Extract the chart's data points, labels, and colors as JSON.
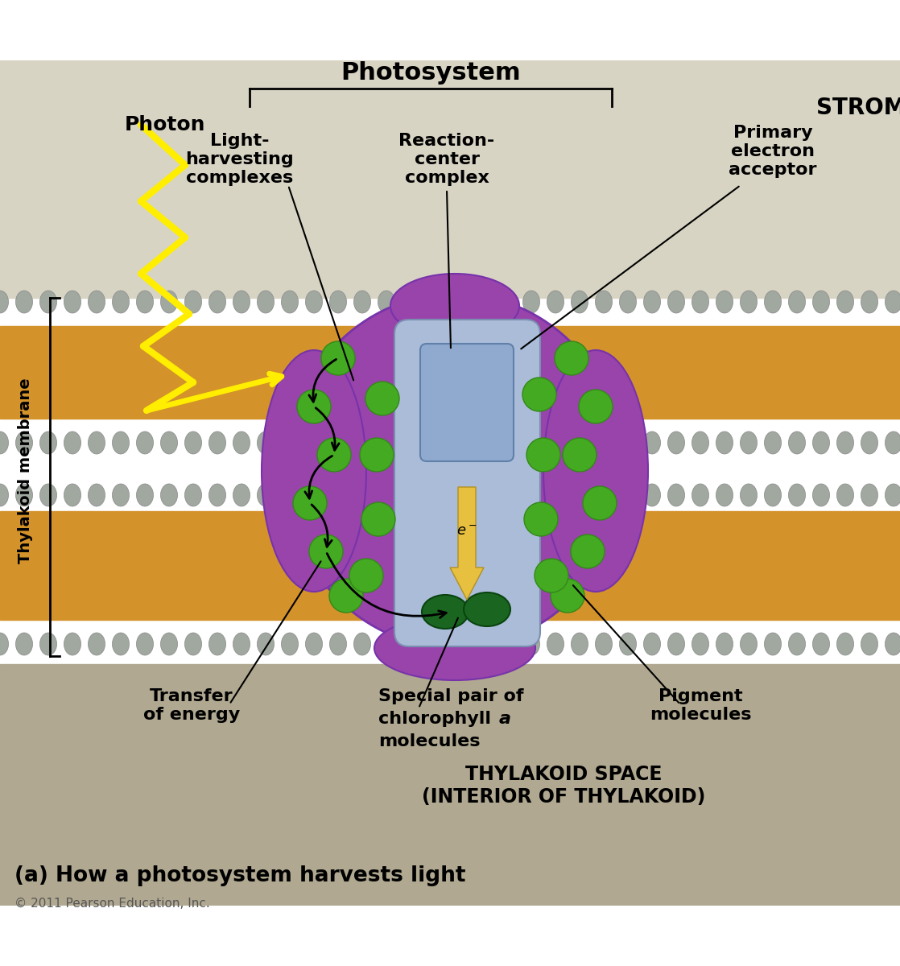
{
  "bg_color": "#ffffff",
  "stroma_color": "#d8d4c4",
  "thylakoid_interior_color": "#b0a890",
  "membrane_orange_color": "#d4922a",
  "membrane_gray_head_color": "#a0a8a0",
  "membrane_gray_tail_color": "#c8ccc8",
  "protein_purple_color": "#9944aa",
  "protein_purple_dark": "#7733aa",
  "reaction_center_blue_color": "#aabcd8",
  "reaction_center_blue_dark": "#8898c0",
  "pigment_green_color": "#44aa22",
  "pigment_green_dark": "#338818",
  "special_pair_dark_green": "#1a6620",
  "photon_color": "#ffee00",
  "electron_color": "#e8c040",
  "title": "Photosystem",
  "stroma_label": "STROMA",
  "thylakoid_space_label": "THYLAKOID SPACE\n(INTERIOR OF THYLAKOID)",
  "thylakoid_membrane_label": "Thylakoid membrane",
  "photon_label": "Photon",
  "light_harvesting_label": "Light-\nharvesting\ncomplexes",
  "reaction_center_label": "Reaction-\ncenter\ncomplex",
  "primary_electron_label": "Primary\nelectron\nacceptor",
  "transfer_energy_label": "Transfer\nof energy",
  "special_pair_label_line1": "Special pair of",
  "special_pair_label_line2": "chlorophyll ",
  "special_pair_label_italic": "a",
  "special_pair_label_line3": "molecules",
  "pigment_label": "Pigment\nmolecules",
  "caption": "(a) How a photosystem harvests light",
  "copyright": "© 2011 Pearson Education, Inc."
}
